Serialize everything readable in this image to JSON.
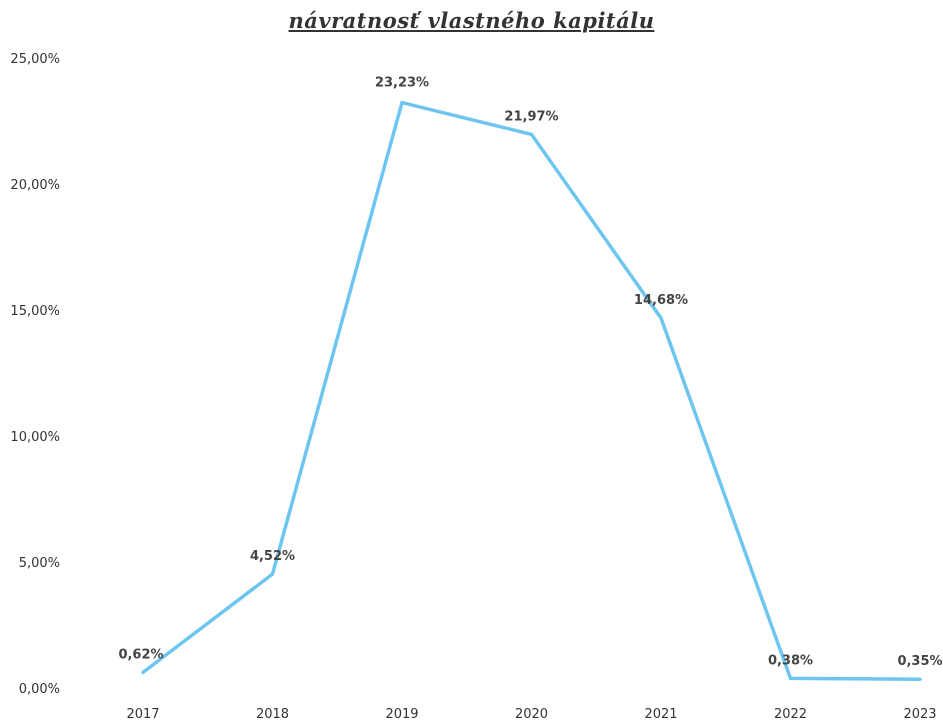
{
  "chart_data": {
    "type": "line",
    "title": "návratnosť vlastného kapitálu",
    "xlabel": "",
    "ylabel": "",
    "categories": [
      "2017",
      "2018",
      "2019",
      "2020",
      "2021",
      "2022",
      "2023"
    ],
    "series": [
      {
        "values": [
          0.62,
          4.52,
          23.23,
          21.97,
          14.68,
          0.38,
          0.35
        ],
        "color": "#6ec6f0"
      }
    ],
    "data_labels": [
      "0,62%",
      "4,52%",
      "23,23%",
      "21,97%",
      "14,68%",
      "0,38%",
      "0,35%"
    ],
    "y_ticks": [
      0,
      5,
      10,
      15,
      20,
      25
    ],
    "y_tick_labels": [
      "0,00%",
      "5,00%",
      "10,00%",
      "15,00%",
      "20,00%",
      "25,00%"
    ],
    "ylim": [
      0,
      25
    ],
    "grid": false,
    "legend": "none"
  }
}
